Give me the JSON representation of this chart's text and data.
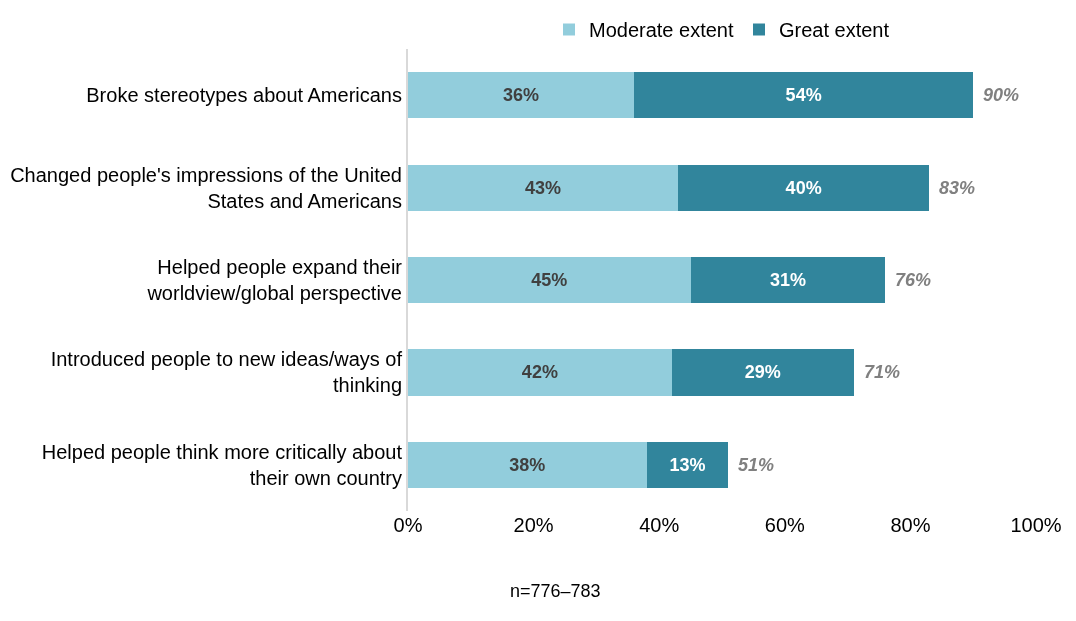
{
  "chart_data": {
    "type": "bar",
    "orientation": "horizontal",
    "stacked": true,
    "categories": [
      "Broke stereotypes about Americans",
      "Changed people's impressions of the United\nStates and Americans",
      "Helped people expand their\nworldview/global perspective",
      "Introduced people to new ideas/ways of\nthinking",
      "Helped people think more critically about\ntheir own country"
    ],
    "series": [
      {
        "name": "Moderate extent",
        "color": "#92cddc",
        "values": [
          36,
          43,
          45,
          42,
          38
        ],
        "value_labels": [
          "36%",
          "43%",
          "45%",
          "42%",
          "38%"
        ]
      },
      {
        "name": "Great extent",
        "color": "#31859c",
        "values": [
          54,
          40,
          31,
          29,
          13
        ],
        "value_labels": [
          "54%",
          "40%",
          "31%",
          "29%",
          "13%"
        ]
      }
    ],
    "totals": [
      "90%",
      "83%",
      "76%",
      "71%",
      "51%"
    ],
    "xlim": [
      0,
      100
    ],
    "xticks": [
      {
        "value": 0,
        "label": "0%"
      },
      {
        "value": 20,
        "label": "20%"
      },
      {
        "value": 40,
        "label": "40%"
      },
      {
        "value": 60,
        "label": "60%"
      },
      {
        "value": 80,
        "label": "80%"
      },
      {
        "value": 100,
        "label": "100%"
      }
    ],
    "legend": "top",
    "annotations": [
      "n=776–783"
    ]
  }
}
